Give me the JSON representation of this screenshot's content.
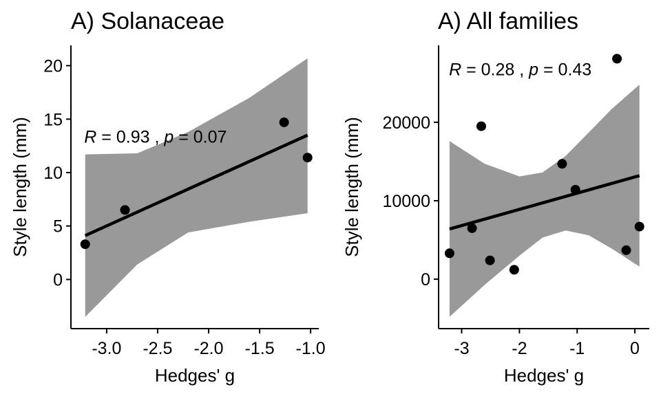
{
  "chart_data": [
    {
      "type": "scatter",
      "title": "A) Solanaceae",
      "xlabel": "Hedges' g",
      "ylabel": "Style length (mm)",
      "xlim": [
        -3.35,
        -0.92
      ],
      "ylim": [
        -4.6,
        21.9
      ],
      "x_ticks": [
        -3.0,
        -2.5,
        -2.0,
        -1.5,
        -1.0
      ],
      "x_tick_labels": [
        "-3.0",
        "-2.5",
        "-2.0",
        "-1.5",
        "-1.0"
      ],
      "y_ticks": [
        0,
        5,
        10,
        15,
        20
      ],
      "y_tick_labels": [
        "0",
        "5",
        "10",
        "15",
        "20"
      ],
      "grid": false,
      "points": [
        {
          "x": -3.21,
          "y": 3.3
        },
        {
          "x": -2.82,
          "y": 6.5
        },
        {
          "x": -1.26,
          "y": 14.7
        },
        {
          "x": -1.03,
          "y": 11.4
        }
      ],
      "fit_line": [
        {
          "x": -3.21,
          "y": 4.1
        },
        {
          "x": -1.03,
          "y": 13.5
        }
      ],
      "confidence_band": {
        "x": [
          -3.21,
          -2.7,
          -2.2,
          -1.6,
          -1.03
        ],
        "lower": [
          -3.5,
          1.4,
          4.4,
          5.4,
          6.2
        ],
        "upper": [
          11.7,
          11.8,
          13.8,
          17.0,
          20.7
        ]
      },
      "annotation": {
        "r_label": "R",
        "r_value": " = 0.93 , ",
        "p_label": "p",
        "p_value": " = 0.07",
        "x": -3.22,
        "y": 12.8
      }
    },
    {
      "type": "scatter",
      "title": "A) All families",
      "xlabel": "Hedges' g",
      "ylabel": "Style length (mm)",
      "xlim": [
        -3.4,
        0.25
      ],
      "ylim": [
        -6300,
        29800
      ],
      "x_ticks": [
        -3,
        -2,
        -1,
        0
      ],
      "x_tick_labels": [
        "-3",
        "-2",
        "-1",
        "0"
      ],
      "y_ticks": [
        0,
        10000,
        20000
      ],
      "y_tick_labels": [
        "0",
        "10000",
        "20000"
      ],
      "grid": false,
      "points": [
        {
          "x": -3.21,
          "y": 3300
        },
        {
          "x": -2.82,
          "y": 6500
        },
        {
          "x": -2.66,
          "y": 19500
        },
        {
          "x": -2.51,
          "y": 2400
        },
        {
          "x": -2.09,
          "y": 1200
        },
        {
          "x": -1.26,
          "y": 14700
        },
        {
          "x": -1.03,
          "y": 11400
        },
        {
          "x": -0.31,
          "y": 28100
        },
        {
          "x": -0.15,
          "y": 3700
        },
        {
          "x": 0.08,
          "y": 6700
        }
      ],
      "fit_line": [
        {
          "x": -3.21,
          "y": 6400
        },
        {
          "x": 0.08,
          "y": 13200
        }
      ],
      "confidence_band": {
        "x": [
          -3.21,
          -2.6,
          -2.0,
          -1.6,
          -1.2,
          -0.8,
          -0.4,
          0.08
        ],
        "lower": [
          -4800,
          -700,
          3000,
          5300,
          6200,
          5600,
          3900,
          1600
        ],
        "upper": [
          17600,
          14700,
          13100,
          13600,
          15700,
          18700,
          21700,
          24800
        ]
      },
      "annotation": {
        "r_label": "R",
        "r_value": " = 0.28 , ",
        "p_label": "p",
        "p_value": " = 0.43",
        "x": -3.22,
        "y": 26000
      }
    }
  ]
}
